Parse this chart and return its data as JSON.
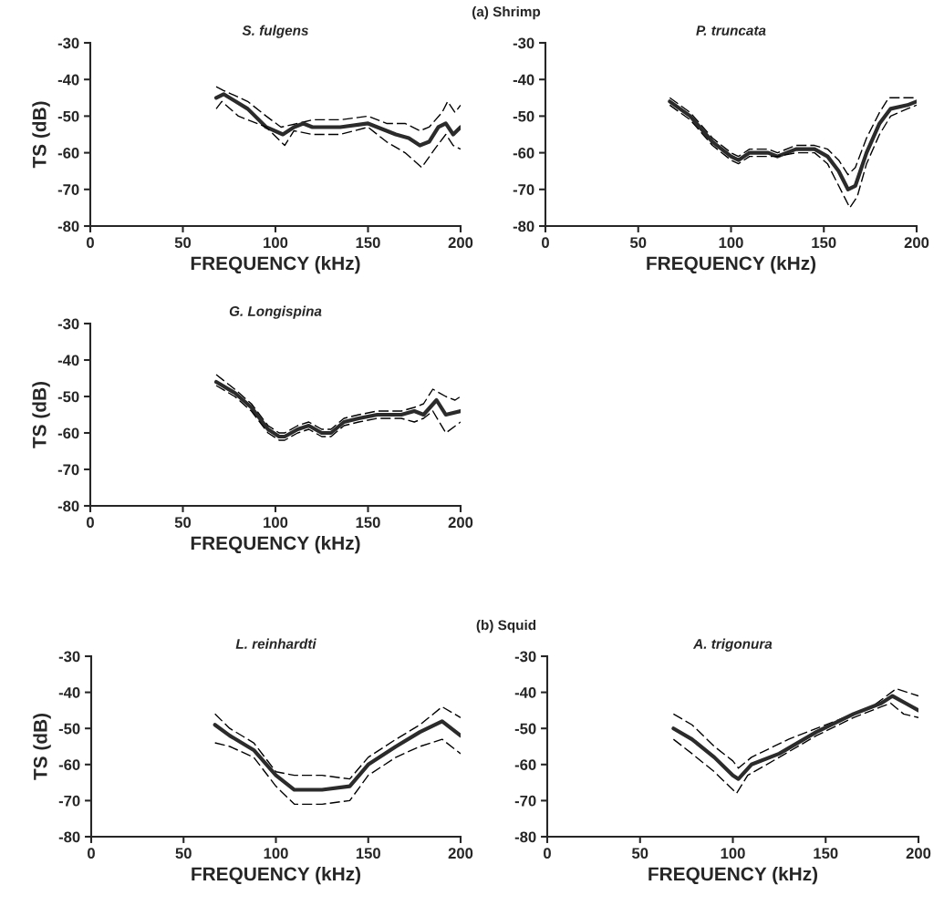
{
  "chart_data": [
    {
      "type": "line",
      "title": "S. fulgens",
      "xlabel": "FREQUENCY (kHz)",
      "ylabel": "TS (dB)",
      "annotations": [
        "(a) Shrimp"
      ],
      "xlim": [
        0,
        200
      ],
      "xticks": [
        0,
        50,
        100,
        150,
        200
      ],
      "ylim": [
        -80,
        -30
      ],
      "yticks": [
        -80,
        -70,
        -60,
        -50,
        -40,
        -30
      ],
      "grid": false,
      "legend": false,
      "series": [
        {
          "color": "#000000",
          "line_style": "dashed",
          "x": [
            68,
            72,
            85,
            95,
            103,
            112,
            120,
            135,
            150,
            160,
            170,
            178,
            183,
            190,
            193,
            197,
            200
          ],
          "values": [
            -42,
            -43,
            -46,
            -50,
            -53,
            -52,
            -51,
            -51,
            -50,
            -52,
            -52,
            -54,
            -53,
            -49,
            -46,
            -49,
            -47
          ]
        },
        {
          "color": "#2b2b2b",
          "line_style": "solid",
          "x": [
            68,
            72,
            85,
            95,
            104,
            110,
            115,
            120,
            135,
            150,
            155,
            165,
            172,
            178,
            183,
            188,
            192,
            196,
            200
          ],
          "values": [
            -45,
            -44,
            -48,
            -53,
            -55,
            -53,
            -52,
            -53,
            -53,
            -52,
            -53,
            -55,
            -56,
            -58,
            -57,
            -53,
            -52,
            -55,
            -53
          ]
        },
        {
          "color": "#000000",
          "line_style": "dashed",
          "x": [
            68,
            71,
            80,
            95,
            105,
            110,
            120,
            135,
            150,
            160,
            170,
            179,
            186,
            192,
            196,
            200
          ],
          "values": [
            -48,
            -46,
            -50,
            -53,
            -58,
            -54,
            -55,
            -55,
            -53,
            -57,
            -60,
            -64,
            -59,
            -55,
            -58,
            -59
          ]
        }
      ]
    },
    {
      "type": "line",
      "title": "P. truncata",
      "xlabel": "FREQUENCY (kHz)",
      "xlim": [
        0,
        200
      ],
      "xticks": [
        0,
        50,
        100,
        150,
        200
      ],
      "ylim": [
        -80,
        -30
      ],
      "yticks": [
        -80,
        -70,
        -60,
        -50,
        -40,
        -30
      ],
      "grid": false,
      "legend": false,
      "series": [
        {
          "color": "#000000",
          "line_style": "dashed",
          "x": [
            67,
            78,
            90,
            100,
            104,
            110,
            120,
            125,
            135,
            145,
            152,
            158,
            163,
            167,
            173,
            180,
            185,
            195,
            200
          ],
          "values": [
            -45,
            -49,
            -56,
            -60,
            -61,
            -59,
            -59,
            -60,
            -58,
            -58,
            -59,
            -62,
            -66,
            -64,
            -56,
            -49,
            -45,
            -45,
            -45
          ]
        },
        {
          "color": "#2b2b2b",
          "line_style": "solid",
          "x": [
            67,
            78,
            90,
            100,
            104,
            110,
            120,
            125,
            135,
            145,
            152,
            158,
            163,
            167,
            173,
            180,
            186,
            195,
            200
          ],
          "values": [
            -46,
            -50,
            -57,
            -61,
            -62,
            -60,
            -60,
            -61,
            -59,
            -59,
            -61,
            -65,
            -70,
            -69,
            -60,
            -52,
            -48,
            -47,
            -46
          ]
        },
        {
          "color": "#000000",
          "line_style": "dashed",
          "x": [
            67,
            78,
            90,
            100,
            104,
            110,
            120,
            125,
            135,
            145,
            152,
            158,
            164,
            168,
            173,
            180,
            186,
            195,
            200
          ],
          "values": [
            -47,
            -51,
            -58,
            -62,
            -63,
            -61,
            -61,
            -61,
            -60,
            -60,
            -63,
            -69,
            -75,
            -72,
            -63,
            -55,
            -50,
            -48,
            -47
          ]
        }
      ]
    },
    {
      "type": "line",
      "title": "G. Longispina",
      "xlabel": "FREQUENCY (kHz)",
      "ylabel": "TS (dB)",
      "xlim": [
        0,
        200
      ],
      "xticks": [
        0,
        50,
        100,
        150,
        200
      ],
      "ylim": [
        -80,
        -30
      ],
      "yticks": [
        -80,
        -70,
        -60,
        -50,
        -40,
        -30
      ],
      "grid": false,
      "legend": false,
      "series": [
        {
          "color": "#000000",
          "line_style": "dashed",
          "x": [
            68,
            78,
            87,
            96,
            102,
            105,
            112,
            118,
            125,
            130,
            137,
            145,
            155,
            168,
            175,
            180,
            185,
            192,
            197,
            200
          ],
          "values": [
            -44,
            -48,
            -52,
            -58,
            -60,
            -60,
            -58,
            -57,
            -59,
            -59,
            -56,
            -55,
            -54,
            -54,
            -53,
            -52,
            -48,
            -50,
            -51,
            -50
          ]
        },
        {
          "color": "#2b2b2b",
          "line_style": "solid",
          "x": [
            68,
            78,
            87,
            96,
            102,
            105,
            112,
            118,
            125,
            130,
            137,
            145,
            155,
            168,
            175,
            180,
            187,
            192,
            200
          ],
          "values": [
            -46,
            -49,
            -53,
            -59,
            -61,
            -61,
            -59,
            -58,
            -60,
            -60,
            -57,
            -56,
            -55,
            -55,
            -54,
            -55,
            -51,
            -55,
            -54
          ]
        },
        {
          "color": "#000000",
          "line_style": "dashed",
          "x": [
            68,
            78,
            87,
            96,
            102,
            105,
            112,
            118,
            125,
            130,
            137,
            145,
            155,
            168,
            175,
            180,
            185,
            192,
            200
          ],
          "values": [
            -47,
            -50,
            -54,
            -60,
            -62,
            -62,
            -60,
            -59,
            -61,
            -61,
            -58,
            -57,
            -56,
            -56,
            -57,
            -56,
            -54,
            -60,
            -57
          ]
        }
      ]
    },
    {
      "type": "line",
      "title": "L. reinhardti",
      "xlabel": "FREQUENCY (kHz)",
      "ylabel": "TS (dB)",
      "annotations": [
        "(b) Squid"
      ],
      "xlim": [
        0,
        200
      ],
      "xticks": [
        0,
        50,
        100,
        150,
        200
      ],
      "ylim": [
        -80,
        -30
      ],
      "yticks": [
        -80,
        -70,
        -60,
        -50,
        -40,
        -30
      ],
      "grid": false,
      "legend": false,
      "series": [
        {
          "color": "#000000",
          "line_style": "dashed",
          "x": [
            67,
            75,
            88,
            100,
            110,
            125,
            140,
            150,
            165,
            178,
            190,
            200
          ],
          "values": [
            -46,
            -50,
            -54,
            -62,
            -63,
            -63,
            -64,
            -58,
            -53,
            -49,
            -44,
            -47
          ]
        },
        {
          "color": "#2b2b2b",
          "line_style": "solid",
          "x": [
            67,
            75,
            88,
            100,
            110,
            125,
            140,
            150,
            165,
            178,
            190,
            200
          ],
          "values": [
            -49,
            -52,
            -56,
            -63,
            -67,
            -67,
            -66,
            -60,
            -55,
            -51,
            -48,
            -52
          ]
        },
        {
          "color": "#000000",
          "line_style": "dashed",
          "x": [
            67,
            75,
            88,
            100,
            110,
            125,
            140,
            150,
            165,
            178,
            190,
            200
          ],
          "values": [
            -54,
            -55,
            -58,
            -66,
            -71,
            -71,
            -70,
            -63,
            -58,
            -55,
            -53,
            -57
          ]
        }
      ]
    },
    {
      "type": "line",
      "title": "A. trigonura",
      "xlabel": "FREQUENCY (kHz)",
      "xlim": [
        0,
        200
      ],
      "xticks": [
        0,
        50,
        100,
        150,
        200
      ],
      "ylim": [
        -80,
        -30
      ],
      "yticks": [
        -80,
        -70,
        -60,
        -50,
        -40,
        -30
      ],
      "grid": false,
      "legend": false,
      "series": [
        {
          "color": "#000000",
          "line_style": "dashed",
          "x": [
            68,
            78,
            90,
            100,
            103,
            110,
            130,
            155,
            175,
            188,
            200
          ],
          "values": [
            -46,
            -49,
            -55,
            -59,
            -61,
            -58,
            -53,
            -48,
            -44,
            -39,
            -41
          ]
        },
        {
          "color": "#2b2b2b",
          "line_style": "solid",
          "x": [
            68,
            78,
            90,
            100,
            103,
            110,
            125,
            145,
            165,
            180,
            186,
            193,
            200
          ],
          "values": [
            -50,
            -53,
            -58,
            -63,
            -64,
            -60,
            -57,
            -51,
            -46,
            -43,
            -41,
            -43,
            -45
          ]
        },
        {
          "color": "#000000",
          "line_style": "dashed",
          "x": [
            68,
            78,
            90,
            102,
            108,
            125,
            145,
            165,
            180,
            185,
            192,
            200
          ],
          "values": [
            -53,
            -57,
            -62,
            -68,
            -63,
            -58,
            -52,
            -47,
            -44,
            -43,
            -46,
            -47
          ]
        }
      ]
    }
  ]
}
